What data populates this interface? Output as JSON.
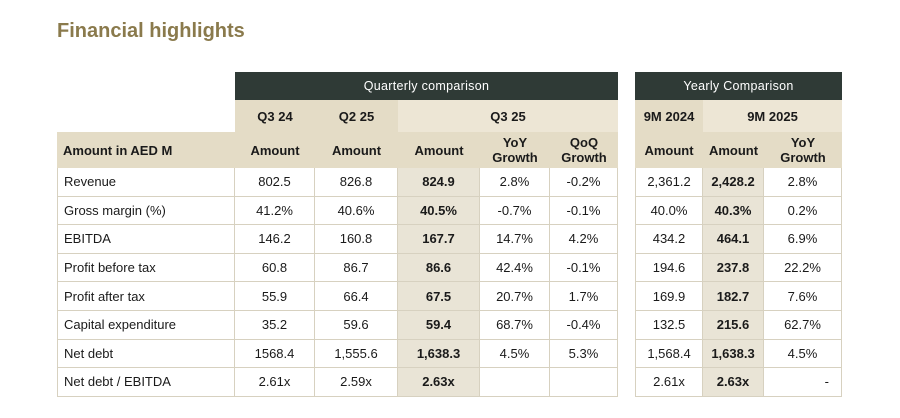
{
  "title": "Financial highlights",
  "groups": {
    "quarterly": "Quarterly comparison",
    "yearly": "Yearly Comparison"
  },
  "periods": {
    "q3_24": "Q3 24",
    "q2_25": "Q2 25",
    "q3_25": "Q3 25",
    "nm_2024": "9M 2024",
    "nm_2025": "9M 2025"
  },
  "subheaders": {
    "label": "Amount in AED M",
    "q3_24": "Amount",
    "q2_25": "Amount",
    "q3_25_amount": "Amount",
    "q3_25_yoy": "YoY\nGrowth",
    "q3_25_qoq": "QoQ\nGrowth",
    "nm_2024": "Amount",
    "nm_2025_amount": "Amount",
    "nm_2025_yoy": "YoY\nGrowth"
  },
  "rows": [
    {
      "label": "Revenue",
      "q3_24": "802.5",
      "q2_25": "826.8",
      "q3_25": "824.9",
      "yoy": "2.8%",
      "qoq": "-0.2%",
      "nm24": "2,361.2",
      "nm25": "2,428.2",
      "nm_yoy": "2.8%"
    },
    {
      "label": "Gross margin (%)",
      "q3_24": "41.2%",
      "q2_25": "40.6%",
      "q3_25": "40.5%",
      "yoy": "-0.7%",
      "qoq": "-0.1%",
      "nm24": "40.0%",
      "nm25": "40.3%",
      "nm_yoy": "0.2%"
    },
    {
      "label": "EBITDA",
      "q3_24": "146.2",
      "q2_25": "160.8",
      "q3_25": "167.7",
      "yoy": "14.7%",
      "qoq": "4.2%",
      "nm24": "434.2",
      "nm25": "464.1",
      "nm_yoy": "6.9%"
    },
    {
      "label": "Profit before tax",
      "q3_24": "60.8",
      "q2_25": "86.7",
      "q3_25": "86.6",
      "yoy": "42.4%",
      "qoq": "-0.1%",
      "nm24": "194.6",
      "nm25": "237.8",
      "nm_yoy": "22.2%"
    },
    {
      "label": "Profit after tax",
      "q3_24": "55.9",
      "q2_25": "66.4",
      "q3_25": "67.5",
      "yoy": "20.7%",
      "qoq": "1.7%",
      "nm24": "169.9",
      "nm25": "182.7",
      "nm_yoy": "7.6%"
    },
    {
      "label": "Capital expenditure",
      "q3_24": "35.2",
      "q2_25": "59.6",
      "q3_25": "59.4",
      "yoy": "68.7%",
      "qoq": "-0.4%",
      "nm24": "132.5",
      "nm25": "215.6",
      "nm_yoy": "62.7%"
    },
    {
      "label": "Net debt",
      "q3_24": "1568.4",
      "q2_25": "1,555.6",
      "q3_25": "1,638.3",
      "yoy": "4.5%",
      "qoq": "5.3%",
      "nm24": "1,568.4",
      "nm25": "1,638.3",
      "nm_yoy": "4.5%"
    },
    {
      "label": "Net debt / EBITDA",
      "q3_24": "2.61x",
      "q2_25": "2.59x",
      "q3_25": "2.63x",
      "yoy": "",
      "qoq": "",
      "nm24": "2.61x",
      "nm25": "2.63x",
      "nm_yoy": "-"
    }
  ]
}
